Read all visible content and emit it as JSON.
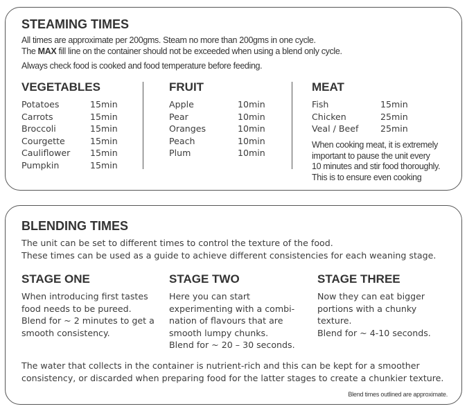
{
  "steaming": {
    "title": "STEAMING TIMES",
    "intro1": "All times are approximate per 200gms. Steam no more than 200gms in one cycle.",
    "intro2_pre": "The ",
    "intro2_bold": "MAX",
    "intro2_post": " fill line on the container should not be exceeded when using a blend only cycle.",
    "intro3": "Always check food is cooked and food temperature before feeding.",
    "vegetables": {
      "heading": "VEGETABLES",
      "items": [
        {
          "name": "Potatoes",
          "time": "15min"
        },
        {
          "name": "Carrots",
          "time": "15min"
        },
        {
          "name": "Broccoli",
          "time": "15min"
        },
        {
          "name": "Courgette",
          "time": "15min"
        },
        {
          "name": "Cauliflower",
          "time": "15min"
        },
        {
          "name": "Pumpkin",
          "time": "15min"
        }
      ]
    },
    "fruit": {
      "heading": "FRUIT",
      "items": [
        {
          "name": "Apple",
          "time": "10min"
        },
        {
          "name": "Pear",
          "time": "10min"
        },
        {
          "name": "Oranges",
          "time": "10min"
        },
        {
          "name": "Peach",
          "time": "10min"
        },
        {
          "name": "Plum",
          "time": "10min"
        }
      ]
    },
    "meat": {
      "heading": "MEAT",
      "items": [
        {
          "name": "Fish",
          "time": "15min"
        },
        {
          "name": "Chicken",
          "time": "25min"
        },
        {
          "name": "Veal / Beef",
          "time": "25min"
        }
      ],
      "note": [
        "When cooking meat, it is extremely",
        "important to pause the unit every",
        "10 minutes and stir food thoroughly.",
        "This is to ensure even cooking"
      ]
    }
  },
  "blending": {
    "title": "BLENDING TIMES",
    "intro": [
      "The unit can be set to different times to control the texture of the food.",
      "These times can be used as a guide to achieve different consistencies for each weaning stage."
    ],
    "stages": [
      {
        "heading": "STAGE ONE",
        "lines": [
          "When introducing first tastes",
          "food needs to be pureed.",
          "Blend for ~ 2 minutes to get a",
          "smooth consistency."
        ]
      },
      {
        "heading": "STAGE TWO",
        "lines": [
          "Here you can start",
          "experimenting with a combi-",
          "nation of flavours that are",
          "smooth lumpy chunks.",
          "Blend for ~ 20 – 30 seconds."
        ]
      },
      {
        "heading": "STAGE THREE",
        "lines": [
          "Now they can eat bigger",
          "portions with a chunky",
          "texture.",
          "Blend for ~ 4-10 seconds."
        ]
      }
    ],
    "outro": [
      "The water that collects in the container is nutrient-rich and this can be kept for a smoother",
      "consistency, or discarded when preparing food for the latter stages to create a chunkier texture."
    ],
    "footnote": "Blend times outlined are approximate."
  }
}
